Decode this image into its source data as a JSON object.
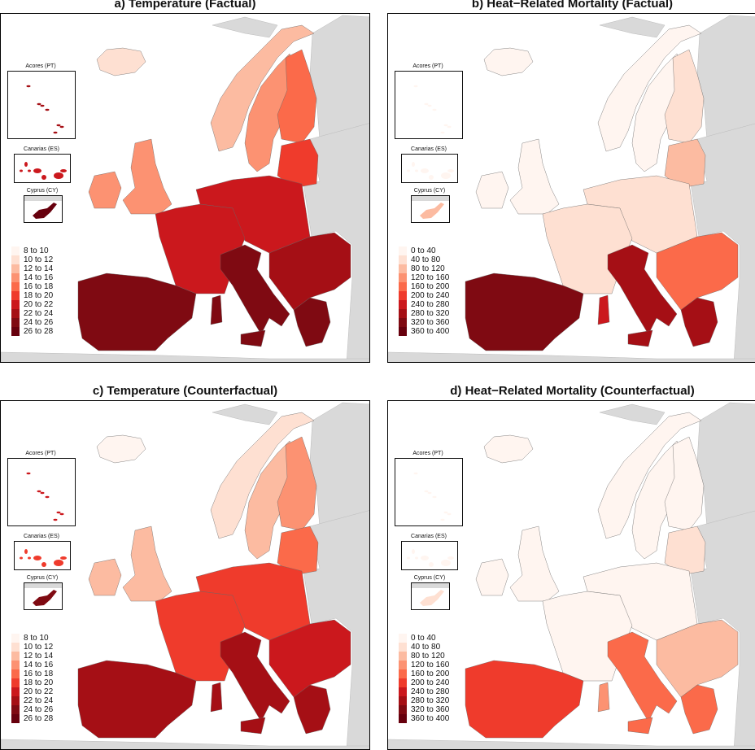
{
  "palette": [
    "#fff5f0",
    "#fee0d2",
    "#fcbba1",
    "#fc9272",
    "#fb6a4a",
    "#ef3b2c",
    "#cb181d",
    "#a50f15",
    "#7f0a12",
    "#67000d"
  ],
  "non_eu_color": "#d9d9d9",
  "insets": {
    "acores": "Acores (PT)",
    "canarias": "Canarias (ES)",
    "cyprus": "Cyprus (CY)"
  },
  "legends": {
    "temperature": [
      "8 to 10",
      "10 to 12",
      "12 to 14",
      "14 to 16",
      "16 to 18",
      "18 to 20",
      "20 to 22",
      "22 to 24",
      "24 to 26",
      "26 to 28"
    ],
    "mortality": [
      "0 to 40",
      "40 to 80",
      "80 to 120",
      "120 to 160",
      "160 to 200",
      "200 to 240",
      "240 to 280",
      "280 to 320",
      "320 to 360",
      "360 to 400"
    ]
  },
  "panels": [
    {
      "title": "a) Temperature (Factual)",
      "legend": "temperature",
      "levels": {
        "IS": 1,
        "NO": 2,
        "SE": 3,
        "FI": 4,
        "BALTIC": 5,
        "UK": 3,
        "IE": 3,
        "FR": 6,
        "CENTRAL": 6,
        "IT": 8,
        "SC": 8,
        "SI": 8,
        "BALKANS": 7,
        "GR": 8,
        "IB": 8,
        "AC": 7,
        "CA": 6,
        "CY": 9
      }
    },
    {
      "title": "b) Heat−Related Mortality (Factual)",
      "legend": "mortality",
      "levels": {
        "IS": 0,
        "NO": 0,
        "SE": 0,
        "FI": 1,
        "BALTIC": 2,
        "UK": 0,
        "IE": 0,
        "FR": 1,
        "CENTRAL": 1,
        "IT": 7,
        "SC": 6,
        "SI": 7,
        "BALKANS": 4,
        "GR": 7,
        "IB": 8,
        "AC": 0,
        "CA": 0,
        "CY": 2
      }
    },
    {
      "title": "c) Temperature (Counterfactual)",
      "legend": "temperature",
      "levels": {
        "IS": 0,
        "NO": 1,
        "SE": 2,
        "FI": 3,
        "BALTIC": 4,
        "UK": 2,
        "IE": 2,
        "FR": 5,
        "CENTRAL": 5,
        "IT": 7,
        "SC": 7,
        "SI": 7,
        "BALKANS": 6,
        "GR": 7,
        "IB": 7,
        "AC": 6,
        "CA": 5,
        "CY": 8
      }
    },
    {
      "title": "d) Heat−Related Mortality (Counterfactual)",
      "legend": "mortality",
      "levels": {
        "IS": 0,
        "NO": 0,
        "SE": 0,
        "FI": 0,
        "BALTIC": 1,
        "UK": 0,
        "IE": 0,
        "FR": 0,
        "CENTRAL": 0,
        "IT": 4,
        "SC": 3,
        "SI": 4,
        "BALKANS": 2,
        "GR": 4,
        "IB": 5,
        "AC": 0,
        "CA": 0,
        "CY": 1
      }
    }
  ]
}
